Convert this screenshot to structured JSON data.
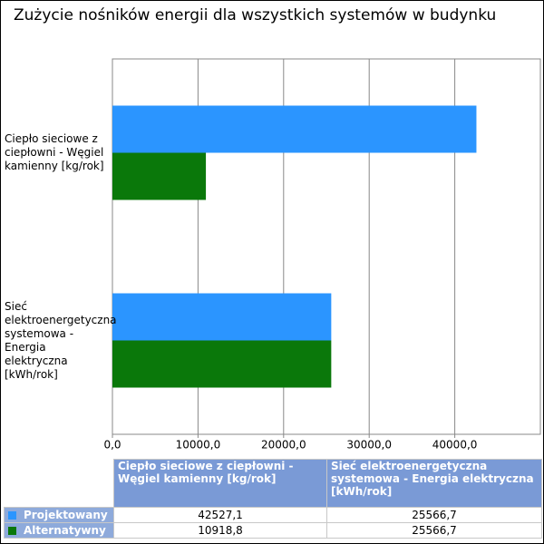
{
  "chart_data": {
    "type": "bar",
    "orientation": "horizontal",
    "title": "Zużycie nośników energii dla wszystkich systemów w budynku",
    "categories": [
      "Ciepło sieciowe z ciepłowni - Węgiel kamienny [kg/rok]",
      "Sieć elektroenergetyczna systemowa - Energia elektryczna [kWh/rok]"
    ],
    "series": [
      {
        "name": "Projektowany",
        "color": "#2b95ff",
        "values": [
          42527.1,
          25566.7
        ],
        "value_labels": [
          "42527,1",
          "25566,7"
        ]
      },
      {
        "name": "Alternatywny",
        "color": "#0a780a",
        "values": [
          10918.8,
          25566.7
        ],
        "value_labels": [
          "10918,8",
          "25566,7"
        ]
      }
    ],
    "xlim": [
      0,
      50000
    ],
    "xticks": [
      {
        "value": 0,
        "label": "0,0"
      },
      {
        "value": 10000,
        "label": "10000,0"
      },
      {
        "value": 20000,
        "label": "20000,0"
      },
      {
        "value": 30000,
        "label": "30000,0"
      },
      {
        "value": 40000,
        "label": "40000,0"
      }
    ],
    "grid": true
  }
}
